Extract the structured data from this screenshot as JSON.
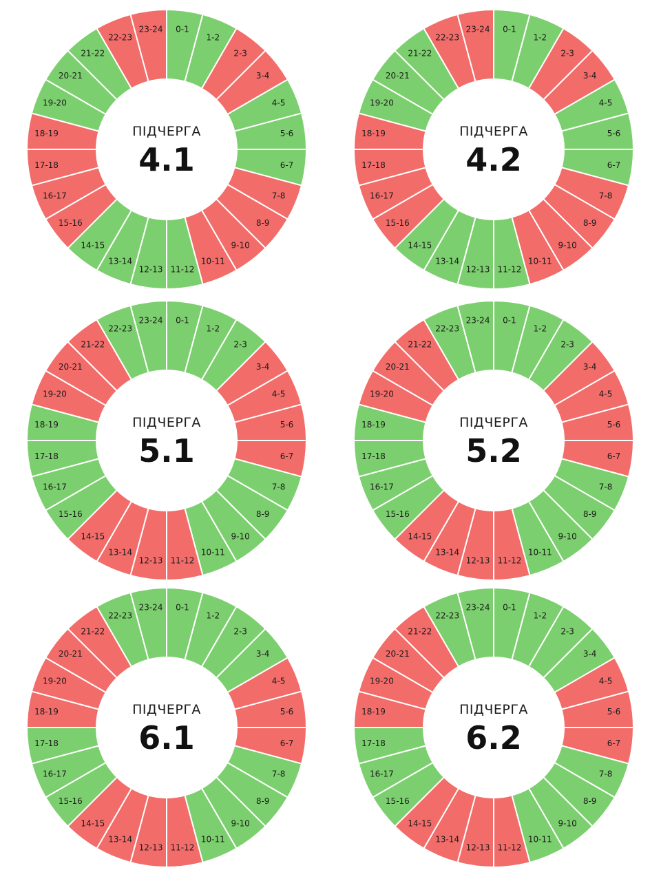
{
  "colors": {
    "on": "#7ccf6e",
    "off": "#f26c6a"
  },
  "hour_labels": [
    "0-1",
    "1-2",
    "2-3",
    "3-4",
    "4-5",
    "5-6",
    "6-7",
    "7-8",
    "8-9",
    "9-10",
    "10-11",
    "11-12",
    "12-13",
    "13-14",
    "14-15",
    "15-16",
    "16-17",
    "17-18",
    "18-19",
    "19-20",
    "20-21",
    "21-22",
    "22-23",
    "23-24"
  ],
  "chart_data": [
    {
      "type": "pie",
      "subtitle": "ПІДЧЕРГА",
      "title": "4.1",
      "segments": [
        "on",
        "on",
        "off",
        "off",
        "on",
        "on",
        "on",
        "off",
        "off",
        "off",
        "off",
        "on",
        "on",
        "on",
        "on",
        "off",
        "off",
        "off",
        "off",
        "on",
        "on",
        "on",
        "off",
        "off"
      ]
    },
    {
      "type": "pie",
      "subtitle": "ПІДЧЕРГА",
      "title": "4.2",
      "segments": [
        "on",
        "on",
        "off",
        "off",
        "on",
        "on",
        "on",
        "off",
        "off",
        "off",
        "off",
        "on",
        "on",
        "on",
        "on",
        "off",
        "off",
        "off",
        "off",
        "on",
        "on",
        "on",
        "off",
        "off"
      ]
    },
    {
      "type": "pie",
      "subtitle": "ПІДЧЕРГА",
      "title": "5.1",
      "segments": [
        "on",
        "on",
        "on",
        "off",
        "off",
        "off",
        "off",
        "on",
        "on",
        "on",
        "on",
        "off",
        "off",
        "off",
        "off",
        "on",
        "on",
        "on",
        "on",
        "off",
        "off",
        "off",
        "on",
        "on"
      ]
    },
    {
      "type": "pie",
      "subtitle": "ПІДЧЕРГА",
      "title": "5.2",
      "segments": [
        "on",
        "on",
        "on",
        "off",
        "off",
        "off",
        "off",
        "on",
        "on",
        "on",
        "on",
        "off",
        "off",
        "off",
        "off",
        "on",
        "on",
        "on",
        "on",
        "off",
        "off",
        "off",
        "on",
        "on"
      ]
    },
    {
      "type": "pie",
      "subtitle": "ПІДЧЕРГА",
      "title": "6.1",
      "segments": [
        "on",
        "on",
        "on",
        "on",
        "off",
        "off",
        "off",
        "on",
        "on",
        "on",
        "on",
        "off",
        "off",
        "off",
        "off",
        "on",
        "on",
        "on",
        "off",
        "off",
        "off",
        "off",
        "on",
        "on"
      ]
    },
    {
      "type": "pie",
      "subtitle": "ПІДЧЕРГА",
      "title": "6.2",
      "segments": [
        "on",
        "on",
        "on",
        "on",
        "off",
        "off",
        "off",
        "on",
        "on",
        "on",
        "on",
        "off",
        "off",
        "off",
        "off",
        "on",
        "on",
        "on",
        "off",
        "off",
        "off",
        "off",
        "on",
        "on"
      ]
    }
  ]
}
